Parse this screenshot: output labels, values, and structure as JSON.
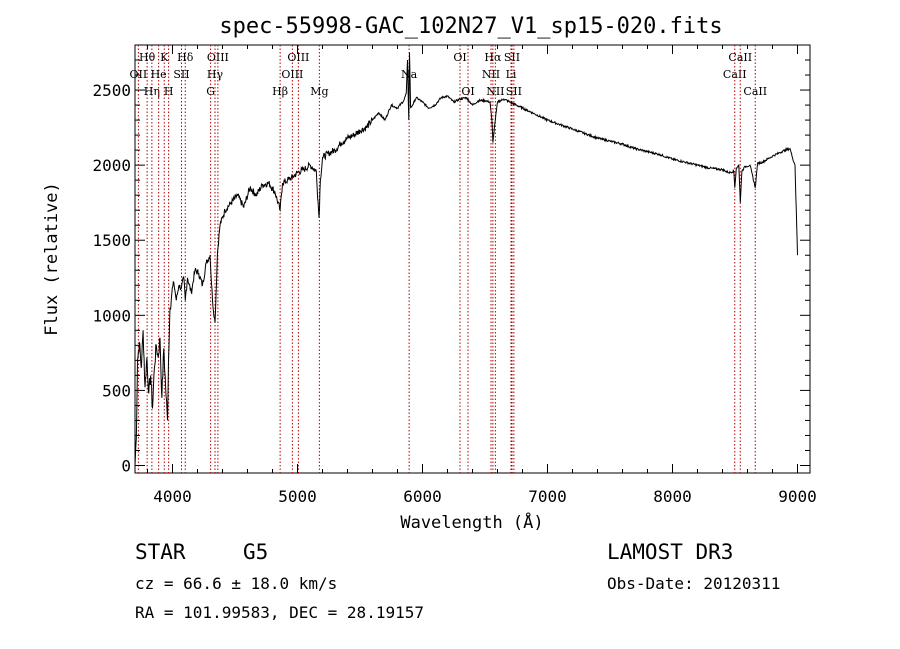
{
  "chart_data": {
    "type": "line",
    "title": "spec-55998-GAC_102N27_V1_sp15-020.fits",
    "xlabel": "Wavelength (Å)",
    "ylabel": "Flux (relative)",
    "xlim": [
      3700,
      9100
    ],
    "ylim": [
      -50,
      2800
    ],
    "xticks": [
      4000,
      5000,
      6000,
      7000,
      8000,
      9000
    ],
    "yticks": [
      0,
      500,
      1000,
      1500,
      2000,
      2500
    ],
    "series": [
      {
        "name": "flux",
        "x": [
          3700,
          3710,
          3720,
          3735,
          3750,
          3765,
          3780,
          3795,
          3810,
          3825,
          3840,
          3855,
          3870,
          3885,
          3900,
          3915,
          3930,
          3945,
          3960,
          3968,
          3980,
          3995,
          4010,
          4030,
          4050,
          4070,
          4090,
          4102,
          4120,
          4150,
          4180,
          4210,
          4240,
          4270,
          4300,
          4320,
          4340,
          4360,
          4380,
          4420,
          4470,
          4520,
          4570,
          4620,
          4670,
          4720,
          4770,
          4820,
          4861,
          4880,
          4920,
          4960,
          5000,
          5050,
          5100,
          5150,
          5172,
          5183,
          5200,
          5250,
          5300,
          5350,
          5400,
          5450,
          5500,
          5550,
          5600,
          5650,
          5700,
          5750,
          5800,
          5850,
          5870,
          5880,
          5890,
          5896,
          5905,
          5920,
          5950,
          6000,
          6050,
          6100,
          6150,
          6200,
          6250,
          6300,
          6350,
          6400,
          6450,
          6500,
          6540,
          6555,
          6563,
          6575,
          6600,
          6650,
          6700,
          6750,
          6800,
          6850,
          6900,
          6950,
          7000,
          7100,
          7200,
          7300,
          7400,
          7500,
          7600,
          7700,
          7800,
          7900,
          8000,
          8100,
          8200,
          8300,
          8400,
          8450,
          8490,
          8498,
          8510,
          8530,
          8542,
          8555,
          8580,
          8620,
          8662,
          8680,
          8720,
          8760,
          8800,
          8850,
          8900,
          8940,
          8960,
          8980,
          8990,
          9000
        ],
        "y": [
          0,
          180,
          700,
          820,
          650,
          900,
          520,
          720,
          480,
          600,
          380,
          650,
          800,
          720,
          850,
          450,
          780,
          520,
          300,
          700,
          1050,
          1150,
          1220,
          1100,
          1200,
          1180,
          1250,
          1100,
          1250,
          1150,
          1300,
          1280,
          1200,
          1350,
          1400,
          1100,
          950,
          1420,
          1600,
          1700,
          1750,
          1800,
          1720,
          1850,
          1800,
          1870,
          1880,
          1820,
          1700,
          1880,
          1900,
          1920,
          1950,
          1970,
          2000,
          1960,
          1650,
          1900,
          2050,
          2080,
          2100,
          2150,
          2180,
          2200,
          2230,
          2250,
          2300,
          2350,
          2300,
          2400,
          2380,
          2430,
          2480,
          2700,
          2300,
          2750,
          2380,
          2400,
          2450,
          2420,
          2380,
          2400,
          2450,
          2460,
          2420,
          2440,
          2450,
          2400,
          2430,
          2430,
          2420,
          2300,
          2150,
          2250,
          2420,
          2440,
          2420,
          2400,
          2380,
          2360,
          2340,
          2320,
          2300,
          2270,
          2240,
          2210,
          2180,
          2160,
          2140,
          2110,
          2090,
          2070,
          2040,
          2020,
          2000,
          1980,
          1970,
          1950,
          1960,
          1850,
          1980,
          2000,
          1750,
          1960,
          1990,
          2000,
          1850,
          2010,
          2020,
          2040,
          2060,
          2080,
          2100,
          2110,
          2050,
          2000,
          1700,
          1400
        ]
      }
    ],
    "spectral_lines": [
      {
        "label": "Hθ",
        "wl": 3797,
        "row": 1
      },
      {
        "label": "OII",
        "wl": 3727,
        "row": 2
      },
      {
        "label": "Hη",
        "wl": 3835,
        "row": 3
      },
      {
        "label": "He",
        "wl": 3889,
        "row": 2
      },
      {
        "label": "K",
        "wl": 3934,
        "row": 1
      },
      {
        "label": "H",
        "wl": 3969,
        "row": 3
      },
      {
        "label": "Hδ",
        "wl": 4102,
        "row": 1
      },
      {
        "label": "SII",
        "wl": 4072,
        "row": 2
      },
      {
        "label": "OIII",
        "wl": 4363,
        "row": 1
      },
      {
        "label": "Hγ",
        "wl": 4340,
        "row": 2
      },
      {
        "label": "G",
        "wl": 4305,
        "row": 3
      },
      {
        "label": "Hβ",
        "wl": 4861,
        "row": 3
      },
      {
        "label": "OIII",
        "wl": 4959,
        "row": 2
      },
      {
        "label": "OIII",
        "wl": 5007,
        "row": 1
      },
      {
        "label": "Mg",
        "wl": 5175,
        "row": 3
      },
      {
        "label": "Na",
        "wl": 5893,
        "row": 2
      },
      {
        "label": "OI",
        "wl": 6300,
        "row": 1
      },
      {
        "label": "OI",
        "wl": 6364,
        "row": 3
      },
      {
        "label": "NII",
        "wl": 6548,
        "row": 2
      },
      {
        "label": "Hα",
        "wl": 6563,
        "row": 1
      },
      {
        "label": "NII",
        "wl": 6583,
        "row": 3
      },
      {
        "label": "SII",
        "wl": 6716,
        "row": 1
      },
      {
        "label": "Li",
        "wl": 6708,
        "row": 2
      },
      {
        "label": "SII",
        "wl": 6731,
        "row": 3
      },
      {
        "label": "CaII",
        "wl": 8498,
        "row": 2
      },
      {
        "label": "CaII",
        "wl": 8542,
        "row": 1
      },
      {
        "label": "CaII",
        "wl": 8662,
        "row": 3
      }
    ],
    "line_color": "#b00000"
  },
  "info": {
    "class": "STAR",
    "subclass": "G5",
    "survey": "LAMOST DR3",
    "cz": "cz = 66.6 ± 18.0 km/s",
    "obs_date": "Obs-Date: 20120311",
    "coords": "RA = 101.99583, DEC =  28.19157"
  }
}
